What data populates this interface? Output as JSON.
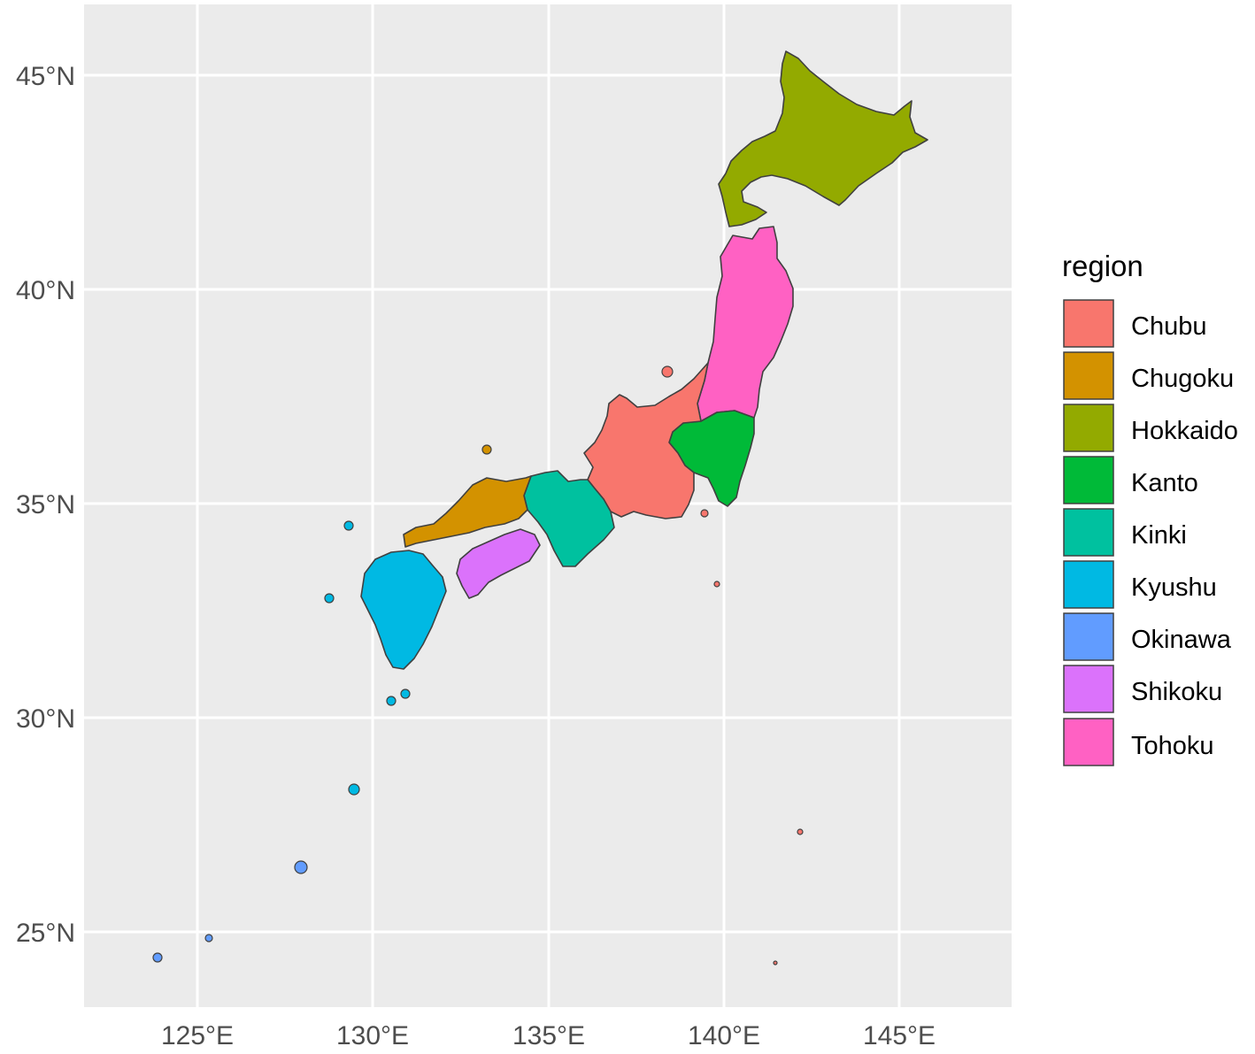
{
  "map": {
    "axis": {
      "x_ticks": [
        "125°E",
        "130°E",
        "135°E",
        "140°E",
        "145°E"
      ],
      "y_ticks": [
        "45°N",
        "40°N",
        "35°N",
        "30°N",
        "25°N"
      ],
      "lon_values": [
        125,
        130,
        135,
        140,
        145
      ],
      "lat_values": [
        45,
        40,
        35,
        30,
        25
      ],
      "lon_range": [
        121.8,
        148.3
      ],
      "lat_range": [
        23.2,
        46.7
      ]
    },
    "panel_background": "#ebebeb",
    "gridline_color": "#ffffff",
    "border_color": "#404040",
    "legend": {
      "title": "region",
      "items": [
        {
          "label": "Chubu",
          "color": "#f8766d"
        },
        {
          "label": "Chugoku",
          "color": "#d39200"
        },
        {
          "label": "Hokkaido",
          "color": "#93aa00"
        },
        {
          "label": "Kanto",
          "color": "#00ba38"
        },
        {
          "label": "Kinki",
          "color": "#00c19f"
        },
        {
          "label": "Kyushu",
          "color": "#00b9e3"
        },
        {
          "label": "Okinawa",
          "color": "#619cff"
        },
        {
          "label": "Shikoku",
          "color": "#db72fb"
        },
        {
          "label": "Tohoku",
          "color": "#ff61c3"
        }
      ]
    }
  }
}
